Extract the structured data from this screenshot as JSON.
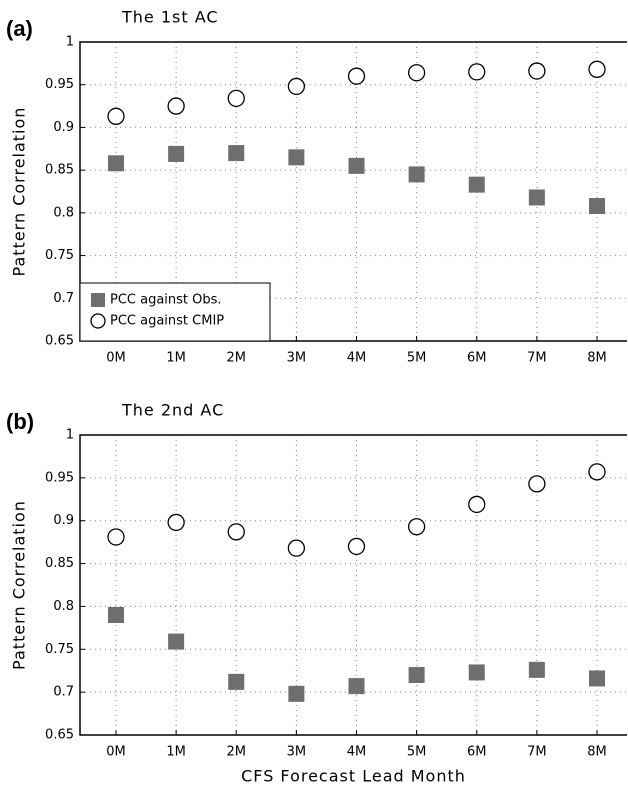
{
  "chart_data": [
    {
      "type": "scatter",
      "panel_label": "(a)",
      "title": "The 1st AC",
      "ylabel": "Pattern Correlation",
      "categories": [
        "0M",
        "1M",
        "2M",
        "3M",
        "4M",
        "5M",
        "6M",
        "7M",
        "8M"
      ],
      "series": [
        {
          "name": "PCC against Obs.",
          "marker": "square",
          "color": "#6e6e6e",
          "values": [
            0.858,
            0.869,
            0.87,
            0.865,
            0.855,
            0.845,
            0.833,
            0.818,
            0.808
          ]
        },
        {
          "name": "PCC against CMIP",
          "marker": "circle",
          "color": "#000000",
          "values": [
            0.913,
            0.925,
            0.934,
            0.948,
            0.96,
            0.964,
            0.965,
            0.966,
            0.968
          ]
        }
      ],
      "ylim": [
        0.65,
        1
      ],
      "yticks": [
        0.65,
        0.7,
        0.75,
        0.8,
        0.85,
        0.9,
        0.95,
        1
      ],
      "grid": true,
      "legend": "lower left"
    },
    {
      "type": "scatter",
      "panel_label": "(b)",
      "title": "The 2nd AC",
      "ylabel": "Pattern Correlation",
      "xlabel": "CFS Forecast Lead Month",
      "categories": [
        "0M",
        "1M",
        "2M",
        "3M",
        "4M",
        "5M",
        "6M",
        "7M",
        "8M"
      ],
      "series": [
        {
          "marker": "square",
          "color": "#6e6e6e",
          "values": [
            0.79,
            0.759,
            0.712,
            0.698,
            0.707,
            0.72,
            0.723,
            0.726,
            0.716
          ]
        },
        {
          "marker": "circle",
          "color": "#000000",
          "values": [
            0.881,
            0.898,
            0.887,
            0.868,
            0.87,
            0.893,
            0.919,
            0.943,
            0.957
          ]
        }
      ],
      "ylim": [
        0.65,
        1
      ],
      "yticks": [
        0.65,
        0.7,
        0.75,
        0.8,
        0.85,
        0.9,
        0.95,
        1
      ],
      "grid": true
    }
  ]
}
